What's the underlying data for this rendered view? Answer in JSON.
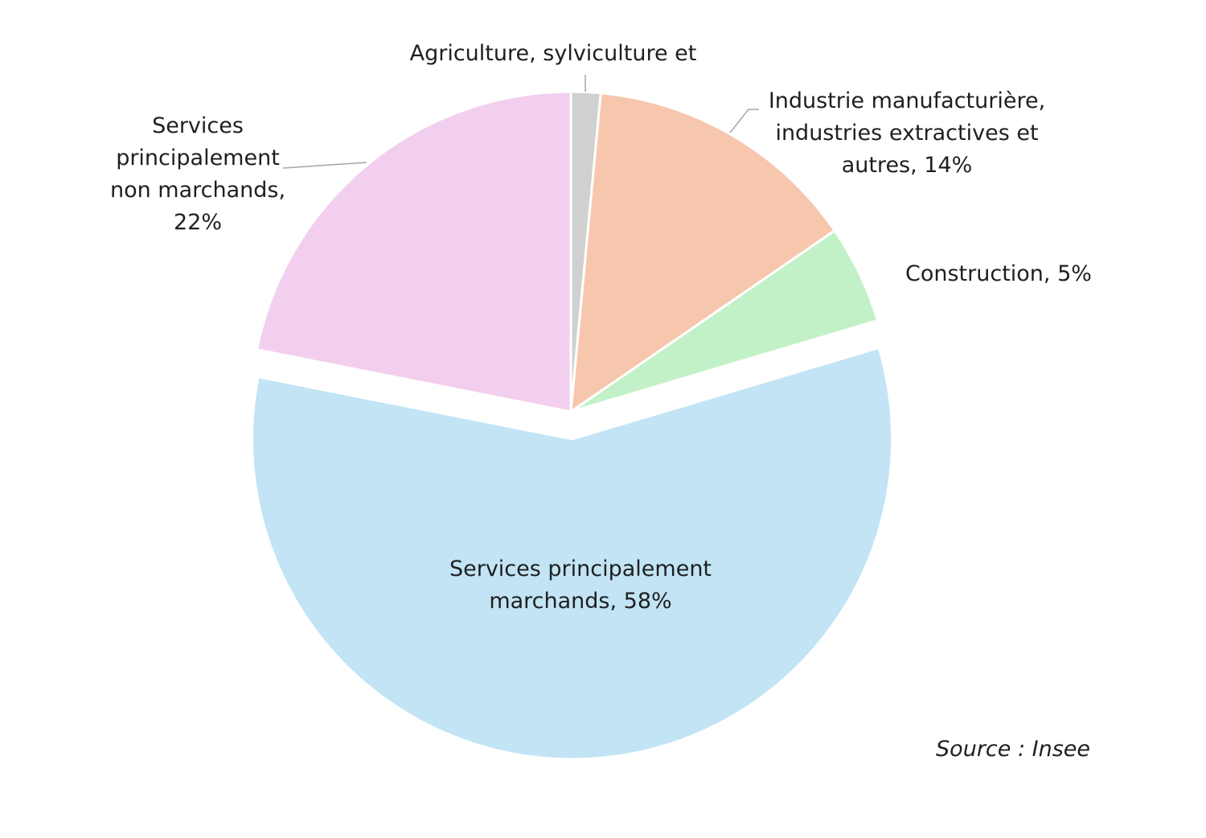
{
  "chart_data": {
    "type": "pie",
    "title": "",
    "slices": [
      {
        "name": "Agriculture, sylviculture et",
        "label_lines": [
          "Agriculture, sylviculture et"
        ],
        "value": 1.5,
        "color": "#d0d0d0"
      },
      {
        "name": "Industrie manufacturière, industries extractives et autres",
        "label_lines": [
          "Industrie manufacturière,",
          "industries extractives et",
          "autres, 14%"
        ],
        "value": 14,
        "color": "#f6c6ad"
      },
      {
        "name": "Construction",
        "label_lines": [
          "Construction, 5%"
        ],
        "value": 5,
        "color": "#c2f1c8"
      },
      {
        "name": "Services principalement marchands",
        "label_lines": [
          "Services principalement",
          "marchands, 58%"
        ],
        "value": 58,
        "color": "#c2e4f5",
        "exploded": true
      },
      {
        "name": "Services principalement non marchands",
        "label_lines": [
          "Services",
          "principalement",
          "non marchands,",
          "22%"
        ],
        "value": 22,
        "color": "#f2cfee"
      }
    ],
    "source": "Source : Insee"
  }
}
